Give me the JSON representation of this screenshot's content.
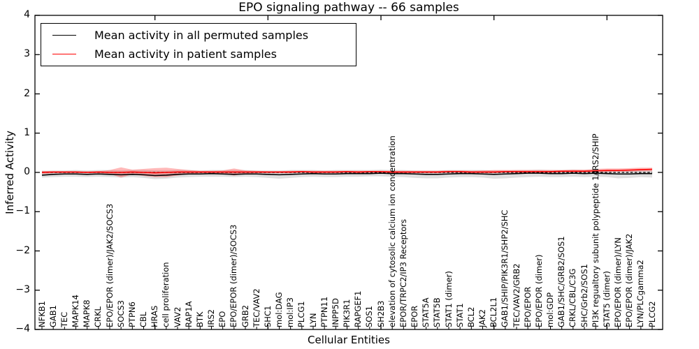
{
  "chart_data": {
    "type": "line",
    "title": "EPO signaling pathway -- 66 samples",
    "xlabel": "Cellular Entities",
    "ylabel": "Inferred Activity",
    "ylim": [
      -4,
      4
    ],
    "yticks": [
      4,
      3,
      2,
      1,
      0,
      -1,
      -2,
      -3,
      -4
    ],
    "ytick_labels": [
      "4",
      "3",
      "2",
      "1",
      "0",
      "−1",
      "−2",
      "−3",
      "−4"
    ],
    "grid": false,
    "legend_position": "upper left",
    "zero_line": {
      "value": 0,
      "style": "dashed",
      "color": "#000000"
    },
    "categories": [
      "NFKB1",
      "GAB1",
      "TEC",
      "MAPK14",
      "MAPK8",
      "CRKL",
      "EPO/EPOR (dimer)/JAK2/SOCS3",
      "SOCS3",
      "PTPN6",
      "CBL",
      "HRAS",
      "cell proliferation",
      "VAV2",
      "RAP1A",
      "BTK",
      "IRS2",
      "EPO",
      "EPO/EPOR (dimer)/SOCS3",
      "GRB2",
      "TEC/VAV2",
      "SHC1",
      "mol:DAG",
      "mol:IP3",
      "PLCG1",
      "LYN",
      "PTPN11",
      "INPP5D",
      "PIK3R1",
      "RAPGEF1",
      "SOS1",
      "SH2B3",
      "elevation of cytosolic calcium ion concentration",
      "EPOR/TRPC2/IP3 Receptors",
      "EPOR",
      "STAT5A",
      "STAT5B",
      "STAT1 (dimer)",
      "STAT1",
      "BCL2",
      "JAK2",
      "BCL2L1",
      "GAB1/SHIP/PIK3R1/SHP2/SHC",
      "TEC/VAV2/GRB2",
      "EPO/EPOR",
      "EPO/EPOR (dimer)",
      "mol:GDP",
      "GAB1/SHC/GRB2/SOS1",
      "CRKL/CBL/C3G",
      "SHC/Grb2/SOS1",
      "PI3K regualtory subunit polypeptide 1/IRS2/SHIP",
      "STAT5 (dimer)",
      "EPO/EPOR (dimer)/LYN",
      "EPO/EPOR (dimer)/JAK2",
      "LYN/PLCgamma2",
      "PLCG2"
    ],
    "series": [
      {
        "name": "Mean activity in all permuted samples",
        "color": "#000000",
        "style": "solid",
        "values": [
          -0.07,
          -0.05,
          -0.04,
          -0.04,
          -0.05,
          -0.04,
          -0.05,
          -0.06,
          -0.05,
          -0.06,
          -0.08,
          -0.07,
          -0.05,
          -0.04,
          -0.04,
          -0.03,
          -0.04,
          -0.05,
          -0.04,
          -0.04,
          -0.05,
          -0.06,
          -0.05,
          -0.04,
          -0.03,
          -0.04,
          -0.04,
          -0.03,
          -0.03,
          -0.03,
          -0.02,
          -0.03,
          -0.03,
          -0.04,
          -0.05,
          -0.05,
          -0.04,
          -0.03,
          -0.03,
          -0.04,
          -0.05,
          -0.04,
          -0.03,
          -0.02,
          -0.02,
          -0.03,
          -0.03,
          -0.02,
          -0.03,
          -0.02,
          -0.03,
          -0.04,
          -0.04,
          -0.03,
          -0.03
        ]
      },
      {
        "name": "Mean activity in patient samples",
        "color": "#ff0000",
        "style": "solid",
        "values": [
          0.0,
          0.01,
          0.01,
          0.01,
          0.0,
          0.01,
          0.0,
          0.0,
          0.01,
          0.0,
          -0.01,
          0.0,
          0.01,
          0.01,
          0.01,
          0.01,
          0.01,
          0.01,
          0.01,
          0.01,
          0.01,
          0.01,
          0.01,
          0.02,
          0.01,
          0.01,
          0.01,
          0.02,
          0.01,
          0.02,
          0.02,
          0.01,
          0.01,
          0.01,
          0.01,
          0.01,
          0.02,
          0.02,
          0.01,
          0.01,
          0.01,
          0.02,
          0.02,
          0.02,
          0.02,
          0.02,
          0.03,
          0.03,
          0.03,
          0.04,
          0.05,
          0.05,
          0.06,
          0.07,
          0.08
        ]
      }
    ],
    "bands": [
      {
        "name": "permuted-range",
        "color": "#999999",
        "opacity": 0.32,
        "lo": [
          -0.13,
          -0.12,
          -0.11,
          -0.11,
          -0.12,
          -0.11,
          -0.12,
          -0.13,
          -0.12,
          -0.14,
          -0.17,
          -0.16,
          -0.13,
          -0.12,
          -0.11,
          -0.11,
          -0.11,
          -0.12,
          -0.11,
          -0.12,
          -0.14,
          -0.16,
          -0.14,
          -0.12,
          -0.11,
          -0.12,
          -0.12,
          -0.11,
          -0.11,
          -0.1,
          -0.1,
          -0.11,
          -0.12,
          -0.14,
          -0.15,
          -0.15,
          -0.13,
          -0.12,
          -0.12,
          -0.13,
          -0.16,
          -0.15,
          -0.13,
          -0.12,
          -0.11,
          -0.12,
          -0.12,
          -0.11,
          -0.12,
          -0.11,
          -0.12,
          -0.15,
          -0.14,
          -0.12,
          -0.13
        ],
        "hi": [
          0.04,
          0.05,
          0.05,
          0.06,
          0.05,
          0.06,
          0.06,
          0.05,
          0.06,
          0.06,
          0.05,
          0.05,
          0.06,
          0.06,
          0.05,
          0.06,
          0.06,
          0.06,
          0.06,
          0.05,
          0.05,
          0.05,
          0.06,
          0.06,
          0.06,
          0.05,
          0.06,
          0.06,
          0.06,
          0.06,
          0.07,
          0.06,
          0.06,
          0.05,
          0.05,
          0.05,
          0.06,
          0.06,
          0.06,
          0.06,
          0.05,
          0.05,
          0.06,
          0.06,
          0.07,
          0.06,
          0.06,
          0.07,
          0.06,
          0.07,
          0.06,
          0.05,
          0.06,
          0.07,
          0.06
        ]
      },
      {
        "name": "patient-range",
        "color": "#ff0000",
        "opacity": 0.28,
        "lo": [
          -0.04,
          -0.02,
          -0.02,
          -0.02,
          -0.02,
          -0.02,
          -0.04,
          -0.13,
          -0.05,
          -0.09,
          -0.12,
          -0.12,
          -0.08,
          -0.04,
          -0.02,
          -0.02,
          -0.03,
          -0.08,
          -0.03,
          -0.02,
          -0.02,
          -0.02,
          -0.02,
          -0.01,
          -0.02,
          -0.02,
          -0.02,
          -0.01,
          -0.02,
          -0.01,
          -0.01,
          -0.02,
          -0.02,
          -0.02,
          -0.02,
          -0.02,
          -0.01,
          -0.01,
          -0.02,
          -0.02,
          -0.02,
          -0.01,
          -0.01,
          -0.01,
          -0.01,
          -0.01,
          0.0,
          0.0,
          0.0,
          0.01,
          0.01,
          0.02,
          0.02,
          0.03,
          0.03
        ],
        "hi": [
          0.04,
          0.03,
          0.03,
          0.03,
          0.03,
          0.03,
          0.06,
          0.13,
          0.07,
          0.09,
          0.11,
          0.12,
          0.09,
          0.06,
          0.04,
          0.04,
          0.05,
          0.1,
          0.05,
          0.04,
          0.03,
          0.03,
          0.04,
          0.04,
          0.04,
          0.04,
          0.04,
          0.04,
          0.04,
          0.04,
          0.04,
          0.04,
          0.04,
          0.04,
          0.04,
          0.04,
          0.05,
          0.05,
          0.04,
          0.05,
          0.06,
          0.06,
          0.06,
          0.06,
          0.06,
          0.06,
          0.06,
          0.07,
          0.07,
          0.09,
          0.1,
          0.1,
          0.11,
          0.12,
          0.12
        ]
      }
    ]
  }
}
